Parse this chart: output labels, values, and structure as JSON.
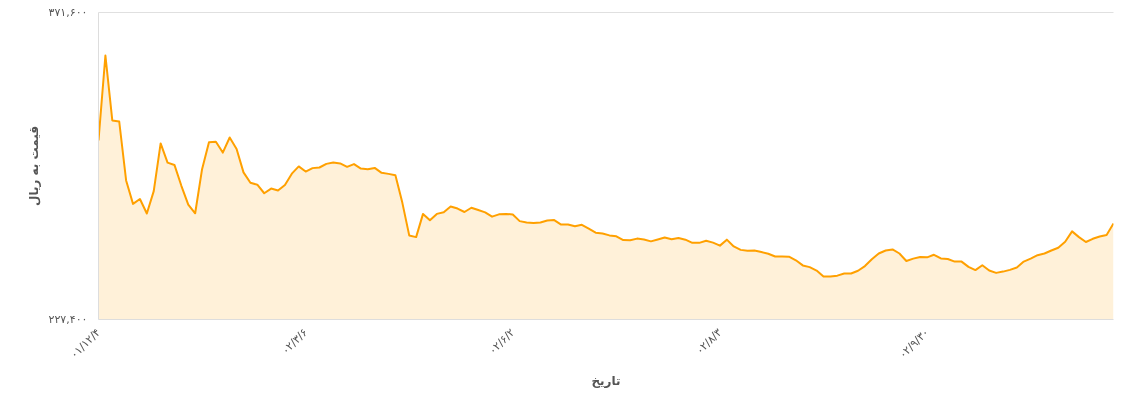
{
  "chart_data": {
    "type": "area",
    "xlabel": "تاریخ",
    "ylabel": "قیمت به ریال",
    "color": "#ffa000",
    "ylim": [
      227400,
      371600
    ],
    "yticks": [
      {
        "value": 227400,
        "label": "۲۲۷,۴۰۰"
      },
      {
        "value": 371600,
        "label": "۳۷۱,۶۰۰"
      }
    ],
    "categories": [
      "۰۱/۱۲/۴",
      null,
      null,
      null,
      null,
      null,
      null,
      null,
      null,
      null,
      null,
      null,
      null,
      null,
      null,
      null,
      null,
      null,
      null,
      null,
      null,
      null,
      null,
      null,
      null,
      null,
      null,
      null,
      null,
      null,
      "۰۲/۳/۶",
      null,
      null,
      null,
      null,
      null,
      null,
      null,
      null,
      null,
      null,
      null,
      null,
      null,
      null,
      null,
      null,
      null,
      null,
      null,
      null,
      null,
      null,
      null,
      null,
      null,
      null,
      null,
      null,
      null,
      "۰۲/۶/۲",
      null,
      null,
      null,
      null,
      null,
      null,
      null,
      null,
      null,
      null,
      null,
      null,
      null,
      null,
      null,
      null,
      null,
      null,
      null,
      null,
      null,
      null,
      null,
      null,
      null,
      null,
      null,
      null,
      null,
      "۰۲/۸/۳",
      null,
      null,
      null,
      null,
      null,
      null,
      null,
      null,
      null,
      null,
      null,
      null,
      null,
      null,
      null,
      null,
      null,
      null,
      null,
      null,
      null,
      null,
      null,
      null,
      null,
      null,
      null,
      null,
      null,
      "۰۲/۹/۳۰",
      null,
      null,
      null,
      null,
      null,
      null,
      null,
      null,
      null,
      null,
      null,
      null,
      null,
      null,
      null,
      null,
      null,
      null,
      null,
      null,
      null,
      null,
      null,
      null,
      null,
      null,
      null
    ],
    "values": [
      311500,
      351400,
      320900,
      320400,
      292700,
      281700,
      284000,
      277200,
      287700,
      310100,
      301100,
      300000,
      290200,
      281400,
      277300,
      298000,
      310600,
      310900,
      305800,
      312900,
      307500,
      296500,
      291600,
      290700,
      286700,
      288900,
      288000,
      290600,
      295900,
      299300,
      296900,
      298500,
      298800,
      300500,
      301100,
      300700,
      299100,
      300400,
      298300,
      298000,
      298600,
      296300,
      295800,
      295200,
      282300,
      266900,
      266100,
      277000,
      274000,
      277000,
      277800,
      280500,
      279500,
      277900,
      279900,
      278800,
      277700,
      275700,
      276800,
      277000,
      276700,
      273600,
      273000,
      272700,
      273000,
      273900,
      274100,
      272000,
      272000,
      271200,
      271900,
      270100,
      268200,
      267800,
      266900,
      266500,
      264700,
      264600,
      265400,
      265000,
      264100,
      265000,
      265900,
      265100,
      265700,
      264900,
      263400,
      263400,
      264400,
      263500,
      262100,
      264900,
      261700,
      260100,
      259700,
      259800,
      259100,
      258300,
      257000,
      257000,
      256900,
      255200,
      252800,
      252000,
      250400,
      247600,
      247600,
      248000,
      249000,
      249000,
      250300,
      252500,
      255700,
      258400,
      259800,
      260300,
      258400,
      254900,
      256000,
      256800,
      256600,
      257800,
      256100,
      255800,
      254600,
      254600,
      252100,
      250600,
      252900,
      250400,
      249300,
      249900,
      250700,
      251800,
      254600,
      256000,
      257600,
      258400,
      259800,
      261100,
      263900,
      268800,
      266100,
      263800,
      265300,
      266400,
      267100,
      272500
    ]
  }
}
